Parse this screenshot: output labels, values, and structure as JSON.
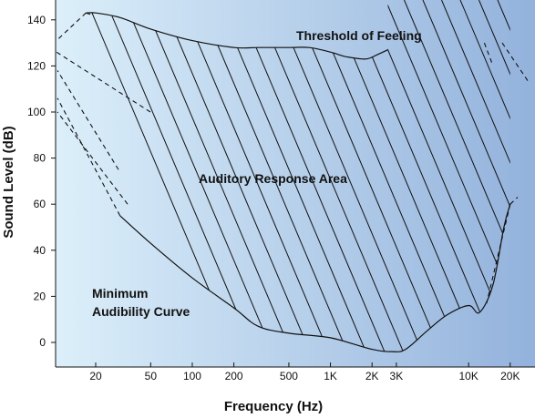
{
  "chart_data": {
    "type": "area",
    "title": "",
    "xlabel": "Frequency (Hz)",
    "ylabel": "Sound Level (dB)",
    "x_scale": "log",
    "x_ticks": [
      20,
      50,
      100,
      200,
      500,
      1000,
      2000,
      3000,
      10000,
      20000
    ],
    "x_tick_labels": [
      "20",
      "50",
      "100",
      "200",
      "500",
      "1K",
      "2K",
      "3K",
      "10K",
      "20K"
    ],
    "y_ticks": [
      0,
      20,
      40,
      60,
      80,
      100,
      120,
      140
    ],
    "y_tick_labels": [
      "0",
      "20",
      "40",
      "60",
      "80",
      "100",
      "120",
      "140"
    ],
    "series": [
      {
        "name": "Threshold of Feeling",
        "x": [
          17,
          20,
          30,
          50,
          100,
          200,
          300,
          500,
          700,
          1000,
          1300,
          1800,
          2200,
          2600
        ],
        "y": [
          143,
          143,
          141,
          136,
          131,
          128,
          128,
          128,
          128,
          126,
          124,
          123,
          125,
          127
        ]
      },
      {
        "name": "Minimum Audibility Curve",
        "x": [
          30,
          50,
          100,
          200,
          300,
          500,
          1000,
          2000,
          2800,
          3500,
          5000,
          7000,
          10000,
          12000,
          15000,
          18000,
          20000
        ],
        "y": [
          55,
          43,
          28,
          15,
          7,
          4,
          2,
          -3,
          -4,
          -3,
          5,
          12,
          16,
          13,
          25,
          50,
          60
        ]
      }
    ],
    "annotations": [
      {
        "text": "Threshold of Feeling"
      },
      {
        "text": "Auditory Response Area"
      },
      {
        "text": "Minimum"
      },
      {
        "text": "Audibility Curve"
      }
    ],
    "colors": {
      "gradient_left": "#dceffa",
      "gradient_right": "#93b2dc",
      "lines": "#111111"
    }
  }
}
